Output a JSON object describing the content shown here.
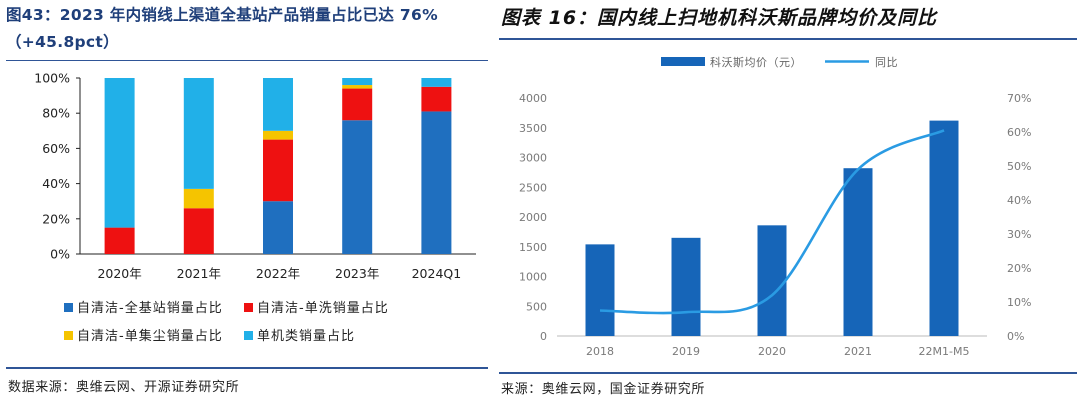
{
  "left_panel": {
    "title": "图43：2023 年内销线上渠道全基站产品销量占比已达 76%（+45.8pct）",
    "source": "数据来源：奥维云网、开源证券研究所"
  },
  "right_panel": {
    "title": "图表 16：国内线上扫地机科沃斯品牌均价及同比",
    "source": "来源：奥维云网，国金证券研究所"
  },
  "chart_data": [
    {
      "type": "bar",
      "stacked": true,
      "title": "图43：2023 年内销线上渠道全基站产品销量占比已达 76%（+45.8pct）",
      "categories": [
        "2020年",
        "2021年",
        "2022年",
        "2023年",
        "2024Q1"
      ],
      "ylim": [
        0,
        100
      ],
      "yticks": [
        "0%",
        "20%",
        "40%",
        "60%",
        "80%",
        "100%"
      ],
      "grid": false,
      "legend_position": "bottom",
      "series": [
        {
          "name": "自清洁-全基站销量占比",
          "color": "#1f6fbf",
          "values": [
            0,
            0,
            30,
            76,
            81
          ]
        },
        {
          "name": "自清洁-单洗销量占比",
          "color": "#ee1111",
          "values": [
            15,
            26,
            35,
            18,
            14
          ]
        },
        {
          "name": "自清洁-单集尘销量占比",
          "color": "#f5c400",
          "values": [
            0,
            11,
            5,
            2,
            0
          ]
        },
        {
          "name": "单机类销量占比",
          "color": "#21b0e8",
          "values": [
            85,
            63,
            30,
            4,
            5
          ]
        }
      ]
    },
    {
      "type": "bar",
      "title": "图表 16：国内线上扫地机科沃斯品牌均价及同比",
      "categories": [
        "2018",
        "2019",
        "2020",
        "2021",
        "22M1-M5"
      ],
      "ylim": [
        0,
        4000
      ],
      "yticks": [
        "0",
        "500",
        "1000",
        "1500",
        "2000",
        "2500",
        "3000",
        "3500",
        "4000"
      ],
      "y2lim": [
        0,
        70
      ],
      "y2ticks": [
        "0%",
        "10%",
        "20%",
        "30%",
        "40%",
        "50%",
        "60%",
        "70%"
      ],
      "grid": false,
      "legend_position": "top",
      "series": [
        {
          "name": "科沃斯均价（元）",
          "type": "bar",
          "axis": "left",
          "color": "#1665b8",
          "values": [
            1540,
            1650,
            1860,
            2820,
            3620
          ]
        },
        {
          "name": "同比",
          "type": "line",
          "axis": "right",
          "color": "#2a9be3",
          "values": [
            7.5,
            7,
            12,
            49,
            60.5
          ]
        }
      ]
    }
  ]
}
